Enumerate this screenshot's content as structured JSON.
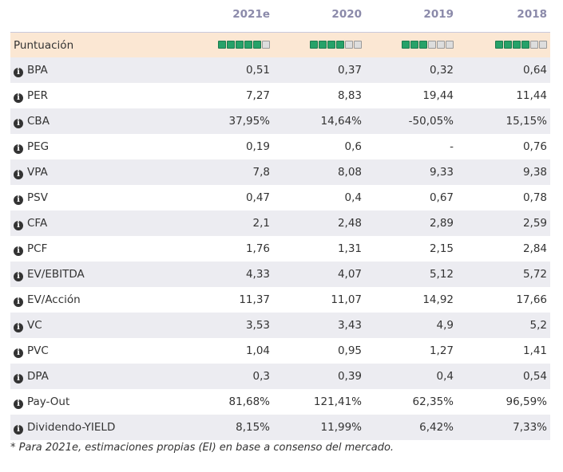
{
  "header": {
    "columns": [
      "2021e",
      "2020",
      "2019",
      "2018"
    ]
  },
  "score": {
    "label": "Puntuación",
    "values": [
      5,
      4,
      3,
      4
    ],
    "max": 6
  },
  "rows": [
    {
      "label": "BPA",
      "values": [
        "0,51",
        "0,37",
        "0,32",
        "0,64"
      ]
    },
    {
      "label": "PER",
      "values": [
        "7,27",
        "8,83",
        "19,44",
        "11,44"
      ]
    },
    {
      "label": "CBA",
      "values": [
        "37,95%",
        "14,64%",
        "-50,05%",
        "15,15%"
      ]
    },
    {
      "label": "PEG",
      "values": [
        "0,19",
        "0,6",
        "-",
        "0,76"
      ]
    },
    {
      "label": "VPA",
      "values": [
        "7,8",
        "8,08",
        "9,33",
        "9,38"
      ]
    },
    {
      "label": "PSV",
      "values": [
        "0,47",
        "0,4",
        "0,67",
        "0,78"
      ]
    },
    {
      "label": "CFA",
      "values": [
        "2,1",
        "2,48",
        "2,89",
        "2,59"
      ]
    },
    {
      "label": "PCF",
      "values": [
        "1,76",
        "1,31",
        "2,15",
        "2,84"
      ]
    },
    {
      "label": "EV/EBITDA",
      "values": [
        "4,33",
        "4,07",
        "5,12",
        "5,72"
      ]
    },
    {
      "label": "EV/Acción",
      "values": [
        "11,37",
        "11,07",
        "14,92",
        "17,66"
      ]
    },
    {
      "label": "VC",
      "values": [
        "3,53",
        "3,43",
        "4,9",
        "5,2"
      ]
    },
    {
      "label": "PVC",
      "values": [
        "1,04",
        "0,95",
        "1,27",
        "1,41"
      ]
    },
    {
      "label": "DPA",
      "values": [
        "0,3",
        "0,39",
        "0,4",
        "0,54"
      ]
    },
    {
      "label": "Pay-Out",
      "values": [
        "81,68%",
        "121,41%",
        "62,35%",
        "96,59%"
      ]
    },
    {
      "label": "Dividendo-YIELD",
      "values": [
        "8,15%",
        "11,99%",
        "6,42%",
        "7,33%"
      ]
    }
  ],
  "footnote": "* Para 2021e, estimaciones propias (EI) en base a consenso del mercado."
}
